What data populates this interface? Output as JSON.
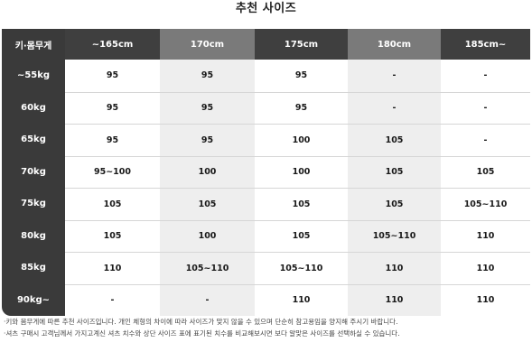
{
  "title": "추천 사이즈",
  "table": {
    "corner_label": "키·몸무게",
    "columns": [
      "~165cm",
      "170cm",
      "175cm",
      "180cm",
      "185cm~"
    ],
    "rows": [
      {
        "label": "~55kg",
        "values": [
          "95",
          "95",
          "95",
          "-",
          "-"
        ]
      },
      {
        "label": "60kg",
        "values": [
          "95",
          "95",
          "95",
          "-",
          "-"
        ]
      },
      {
        "label": "65kg",
        "values": [
          "95",
          "95",
          "100",
          "105",
          "-"
        ]
      },
      {
        "label": "70kg",
        "values": [
          "95~100",
          "100",
          "100",
          "105",
          "105"
        ]
      },
      {
        "label": "75kg",
        "values": [
          "105",
          "105",
          "105",
          "105",
          "105~110"
        ]
      },
      {
        "label": "80kg",
        "values": [
          "105",
          "100",
          "105",
          "105~110",
          "110"
        ]
      },
      {
        "label": "85kg",
        "values": [
          "110",
          "105~110",
          "105~110",
          "110",
          "110"
        ]
      },
      {
        "label": "90kg~",
        "values": [
          "-",
          "-",
          "110",
          "110",
          "110"
        ]
      }
    ]
  },
  "notes": [
    "·키와 몸무게에 따른 추천 사이즈입니다. 개인 체형의 차이에 따라 사이즈가 맞지 않을 수 있으며 단순히 참고용임을 양지해 주시기 바랍니다.",
    "·셔츠 구매시 고객님께서 가지고계신 셔츠 치수와 상단 사이즈 표에 표기된 치수를 비교해보시면 보다 알맞은 사이즈를 선택하실 수 있습니다."
  ],
  "colors": {
    "header_dark": "#3f3f3f",
    "header_light": "#7a7a7a",
    "rowhead_bg": "#3a3a3a",
    "alt_column_bg": "#eeeeee"
  }
}
